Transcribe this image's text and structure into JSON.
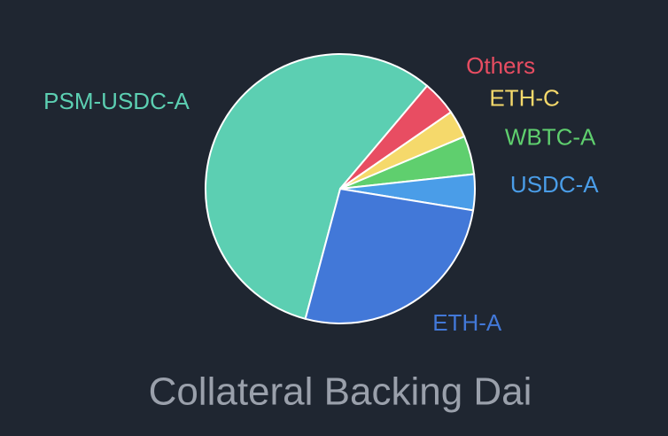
{
  "chart_data": {
    "type": "pie",
    "title": "Collateral Backing Dai",
    "categories": [
      "PSM-USDC-A",
      "Others",
      "ETH-C",
      "WBTC-A",
      "USDC-A",
      "ETH-A"
    ],
    "values": [
      57,
      4.2,
      3.3,
      4.6,
      4.3,
      26.6
    ],
    "colors": [
      "#5ccfb2",
      "#e84d62",
      "#f5d96b",
      "#5fcf6e",
      "#4a9de8",
      "#4278d8"
    ]
  }
}
